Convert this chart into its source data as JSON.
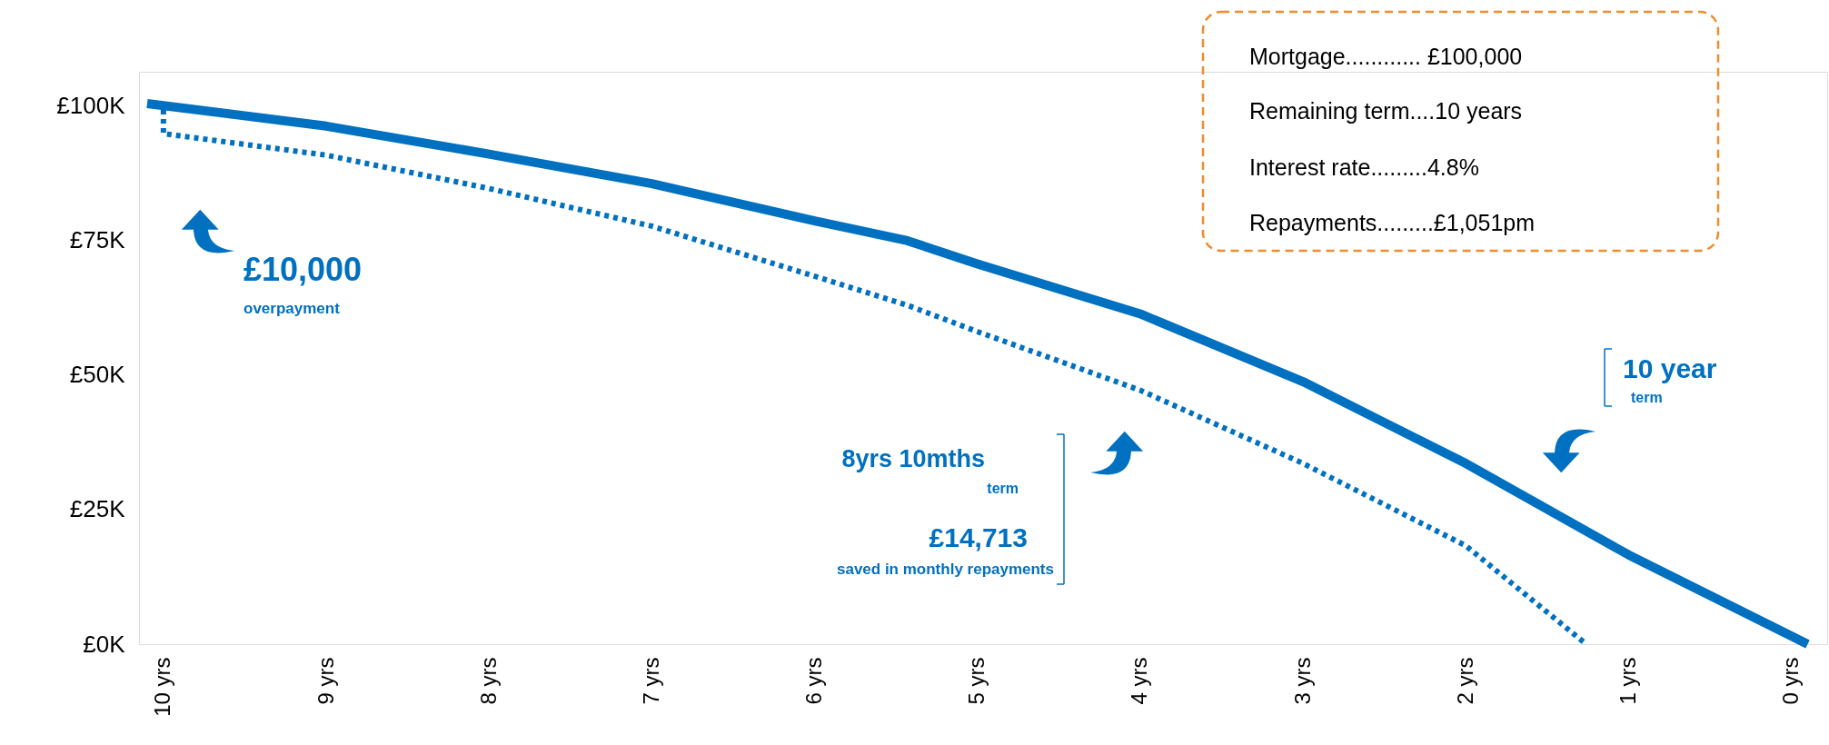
{
  "chart_data": {
    "type": "line",
    "x": [
      10.1,
      9,
      8,
      7,
      6,
      5.43,
      5,
      4,
      3,
      2,
      1,
      -0.1
    ],
    "series": [
      {
        "color": "#0070c0",
        "line_style": "solid",
        "values": [
          100.5,
          96.3,
          91.1,
          85.6,
          78.7,
          75.0,
          70.7,
          61.4,
          48.8,
          33.6,
          16.6,
          0
        ]
      },
      {
        "color": "#0070c0",
        "line_style": "dotted",
        "x": [
          10,
          10,
          9,
          8,
          7,
          6,
          5.43,
          5,
          4,
          3,
          2,
          1.26
        ],
        "values": [
          99.3,
          94.9,
          90.9,
          84.7,
          77.7,
          68.4,
          63.0,
          58.1,
          47.2,
          33.6,
          18.3,
          0
        ]
      }
    ],
    "xlim": [
      10.15,
      -0.22
    ],
    "xticks": [
      {
        "value": 10,
        "label": "10 yrs"
      },
      {
        "value": 9,
        "label": "9 yrs"
      },
      {
        "value": 8,
        "label": "8 yrs"
      },
      {
        "value": 7,
        "label": "7 yrs"
      },
      {
        "value": 6,
        "label": "6 yrs"
      },
      {
        "value": 5,
        "label": "5 yrs"
      },
      {
        "value": 4,
        "label": "4 yrs"
      },
      {
        "value": 3,
        "label": "3 yrs"
      },
      {
        "value": 2,
        "label": "2 yrs"
      },
      {
        "value": 1,
        "label": "1 yrs"
      },
      {
        "value": 0,
        "label": "0 yrs"
      }
    ],
    "ylim": [
      0,
      106.4
    ],
    "yticks": [
      {
        "value": 0,
        "label": "£0K"
      },
      {
        "value": 25,
        "label": "£25K"
      },
      {
        "value": 50,
        "label": "£50K"
      },
      {
        "value": 75,
        "label": "£75K"
      },
      {
        "value": 100,
        "label": "£100K"
      }
    ],
    "grid": false,
    "annotations": [
      "£10,000",
      "overpayment",
      "8yrs 10mths",
      "term",
      "£14,713",
      "saved in monthly repayments",
      "10 year",
      "term",
      "Mortgage............ £100,000",
      "Remaining term....10 years",
      "Interest rate.........4.8%",
      "Repayments.........£1,051pm"
    ]
  }
}
